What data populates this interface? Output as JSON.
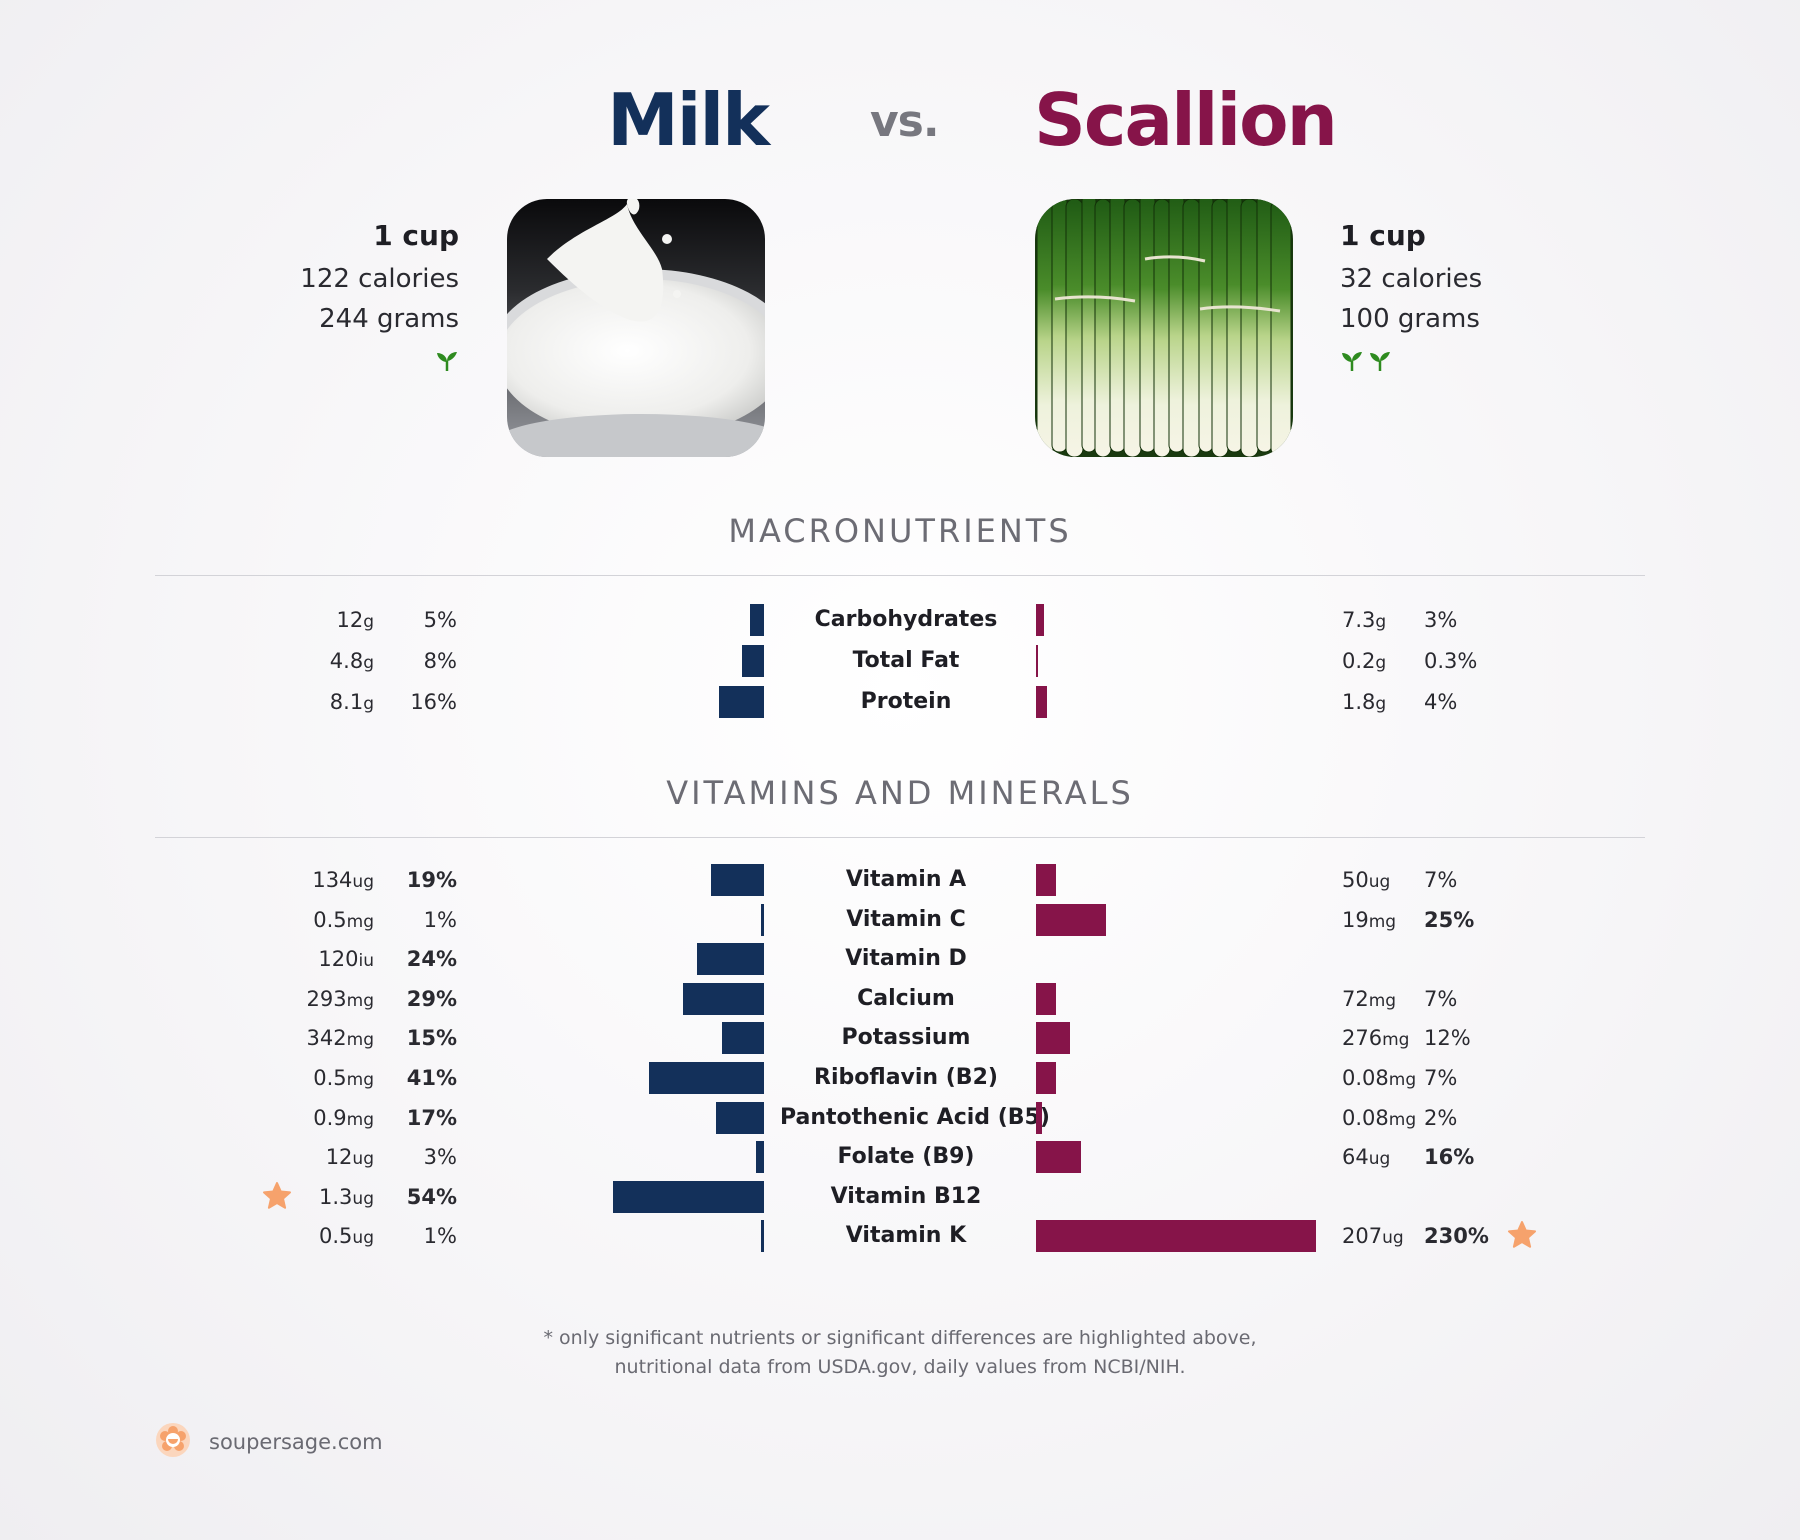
{
  "header": {
    "left_food": "Milk",
    "vs": "vs.",
    "right_food": "Scallion"
  },
  "left": {
    "serving": "1 cup",
    "calories": "122 calories",
    "grams": "244 grams",
    "sprouts": 1
  },
  "right": {
    "serving": "1 cup",
    "calories": "32 calories",
    "grams": "100 grams",
    "sprouts": 2
  },
  "colors": {
    "left": "#13305a",
    "right": "#861449",
    "star": "#f6a26c",
    "sprout": "#2e8b1f"
  },
  "sections": {
    "macro_title": "MACRONUTRIENTS",
    "vitamin_title": "VITAMINS AND MINERALS"
  },
  "footnote": {
    "line1": "* only significant nutrients or significant differences are highlighted above,",
    "line2": "nutritional data from USDA.gov, daily values from NCBI/NIH."
  },
  "brand": {
    "name": "soupersage.com",
    "icon": "soupersage-logo-icon"
  },
  "chart_data": [
    {
      "type": "bar",
      "title": "MACRONUTRIENTS",
      "categories": [
        "Carbohydrates",
        "Total Fat",
        "Protein"
      ],
      "series": [
        {
          "name": "Milk",
          "values": [
            5,
            8,
            16
          ],
          "amounts": [
            "12",
            "4.8",
            "8.1"
          ],
          "units": [
            "g",
            "g",
            "g"
          ],
          "labels": [
            "5%",
            "8%",
            "16%"
          ],
          "bold": [
            false,
            false,
            false
          ]
        },
        {
          "name": "Scallion",
          "values": [
            3,
            0.3,
            4
          ],
          "amounts": [
            "7.3",
            "0.2",
            "1.8"
          ],
          "units": [
            "g",
            "g",
            "g"
          ],
          "labels": [
            "3%",
            "0.3%",
            "4%"
          ],
          "bold": [
            false,
            false,
            false
          ]
        }
      ]
    },
    {
      "type": "bar",
      "title": "VITAMINS AND MINERALS",
      "categories": [
        "Vitamin A",
        "Vitamin C",
        "Vitamin D",
        "Calcium",
        "Potassium",
        "Riboflavin (B2)",
        "Pantothenic Acid (B5)",
        "Folate (B9)",
        "Vitamin B12",
        "Vitamin K"
      ],
      "series": [
        {
          "name": "Milk",
          "values": [
            19,
            1,
            24,
            29,
            15,
            41,
            17,
            3,
            54,
            1
          ],
          "amounts": [
            "134",
            "0.5",
            "120",
            "293",
            "342",
            "0.5",
            "0.9",
            "12",
            "1.3",
            "0.5"
          ],
          "units": [
            "ug",
            "mg",
            "iu",
            "mg",
            "mg",
            "mg",
            "mg",
            "ug",
            "ug",
            "ug"
          ],
          "labels": [
            "19%",
            "1%",
            "24%",
            "29%",
            "15%",
            "41%",
            "17%",
            "3%",
            "54%",
            "1%"
          ],
          "bold": [
            true,
            false,
            true,
            true,
            true,
            true,
            true,
            false,
            true,
            false
          ],
          "starred": [
            false,
            false,
            false,
            false,
            false,
            false,
            false,
            false,
            true,
            false
          ]
        },
        {
          "name": "Scallion",
          "values": [
            7,
            25,
            null,
            7,
            12,
            7,
            2,
            16,
            null,
            230
          ],
          "amounts": [
            "50",
            "19",
            "",
            "72",
            "276",
            "0.08",
            "0.08",
            "64",
            "",
            "207"
          ],
          "units": [
            "ug",
            "mg",
            "",
            "mg",
            "mg",
            "mg",
            "mg",
            "ug",
            "",
            "ug"
          ],
          "labels": [
            "7%",
            "25%",
            "",
            "7%",
            "12%",
            "7%",
            "2%",
            "16%",
            "",
            "230%"
          ],
          "bold": [
            false,
            true,
            false,
            false,
            false,
            false,
            false,
            true,
            false,
            true
          ],
          "starred": [
            false,
            false,
            false,
            false,
            false,
            false,
            false,
            false,
            false,
            true
          ]
        }
      ]
    }
  ]
}
